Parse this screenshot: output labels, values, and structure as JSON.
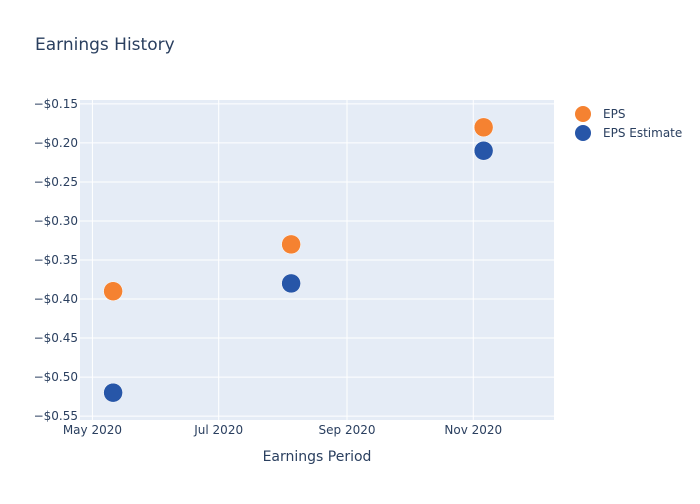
{
  "chart_data": {
    "type": "scatter",
    "title": "Earnings History",
    "xlabel": "Earnings Period",
    "ylabel": "",
    "x_axis_type": "date",
    "xlim": [
      "2020-04-25",
      "2020-12-10"
    ],
    "ylim": [
      -0.555,
      -0.145
    ],
    "x_ticks": [
      {
        "date": "2020-05-01",
        "label": "May 2020"
      },
      {
        "date": "2020-07-01",
        "label": "Jul 2020"
      },
      {
        "date": "2020-09-01",
        "label": "Sep 2020"
      },
      {
        "date": "2020-11-01",
        "label": "Nov 2020"
      }
    ],
    "y_ticks": [
      {
        "value": -0.15,
        "label": "−$0.15"
      },
      {
        "value": -0.2,
        "label": "−$0.20"
      },
      {
        "value": -0.25,
        "label": "−$0.25"
      },
      {
        "value": -0.3,
        "label": "−$0.30"
      },
      {
        "value": -0.35,
        "label": "−$0.35"
      },
      {
        "value": -0.4,
        "label": "−$0.40"
      },
      {
        "value": -0.45,
        "label": "−$0.45"
      },
      {
        "value": -0.5,
        "label": "−$0.50"
      },
      {
        "value": -0.55,
        "label": "−$0.55"
      }
    ],
    "grid": true,
    "legend_position": "top-right",
    "series": [
      {
        "name": "EPS",
        "color": "#f58231",
        "points": [
          {
            "x": "2020-05-11",
            "y": -0.39
          },
          {
            "x": "2020-08-05",
            "y": -0.33
          },
          {
            "x": "2020-11-06",
            "y": -0.18
          }
        ]
      },
      {
        "name": "EPS Estimate",
        "color": "#2756a8",
        "points": [
          {
            "x": "2020-05-11",
            "y": -0.52
          },
          {
            "x": "2020-08-05",
            "y": -0.38
          },
          {
            "x": "2020-11-06",
            "y": -0.21
          }
        ]
      }
    ],
    "colors": {
      "plot_bg": "#e5ecf6",
      "grid": "#ffffff",
      "text": "#2a3f5f"
    }
  }
}
